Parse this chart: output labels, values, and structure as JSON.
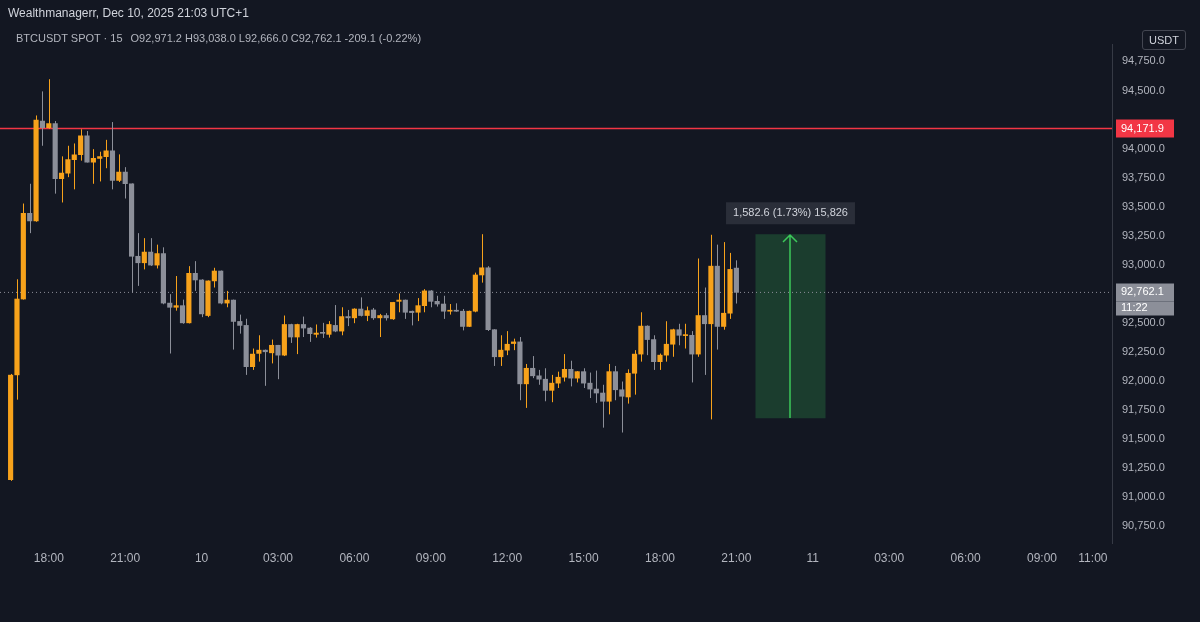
{
  "chart_data": {
    "type": "candlestick",
    "title": "BTCUSDT SPOT · 15",
    "subtitle": "O92,971.2 H93,038.0 L92,666.0 C92,762.1 -209.1 (-0.22%)",
    "ylabel": "USDT",
    "annotations": [
      "Wealthmanagerr, Dec 10, 2025 21:03 UTC+1",
      "11:22"
    ],
    "x": [
      "2025-12-09T16:30",
      "2025-12-09T16:45",
      "2025-12-09T17:00",
      "2025-12-09T17:15",
      "2025-12-09T17:30",
      "2025-12-09T17:45",
      "2025-12-09T18:00",
      "2025-12-09T18:15",
      "2025-12-09T18:30",
      "2025-12-09T18:45",
      "2025-12-09T19:00",
      "2025-12-09T19:15",
      "2025-12-09T19:30",
      "2025-12-09T19:45",
      "2025-12-09T20:00",
      "2025-12-09T20:15",
      "2025-12-09T20:30",
      "2025-12-09T20:45",
      "2025-12-09T21:00",
      "2025-12-09T21:15",
      "2025-12-09T21:30",
      "2025-12-09T21:45",
      "2025-12-09T22:00",
      "2025-12-09T22:15",
      "2025-12-09T22:30",
      "2025-12-09T22:45",
      "2025-12-09T23:00",
      "2025-12-09T23:15",
      "2025-12-09T23:30",
      "2025-12-09T23:45",
      "2025-12-10T00:00",
      "2025-12-10T00:15",
      "2025-12-10T00:30",
      "2025-12-10T00:45",
      "2025-12-10T01:00",
      "2025-12-10T01:15",
      "2025-12-10T01:30",
      "2025-12-10T01:45",
      "2025-12-10T02:00",
      "2025-12-10T02:15",
      "2025-12-10T02:30",
      "2025-12-10T02:45",
      "2025-12-10T03:00",
      "2025-12-10T03:15",
      "2025-12-10T03:30",
      "2025-12-10T03:45",
      "2025-12-10T04:00",
      "2025-12-10T04:15",
      "2025-12-10T04:30",
      "2025-12-10T04:45",
      "2025-12-10T05:00",
      "2025-12-10T05:15",
      "2025-12-10T05:30",
      "2025-12-10T05:45",
      "2025-12-10T06:00",
      "2025-12-10T06:15",
      "2025-12-10T06:30",
      "2025-12-10T06:45",
      "2025-12-10T07:00",
      "2025-12-10T07:15",
      "2025-12-10T07:30",
      "2025-12-10T07:45",
      "2025-12-10T08:00",
      "2025-12-10T08:15",
      "2025-12-10T08:30",
      "2025-12-10T08:45",
      "2025-12-10T09:00",
      "2025-12-10T09:15",
      "2025-12-10T09:30",
      "2025-12-10T09:45",
      "2025-12-10T10:00",
      "2025-12-10T10:15",
      "2025-12-10T10:30",
      "2025-12-10T10:45",
      "2025-12-10T11:00",
      "2025-12-10T11:15",
      "2025-12-10T11:30",
      "2025-12-10T11:45",
      "2025-12-10T12:00",
      "2025-12-10T12:15",
      "2025-12-10T12:30",
      "2025-12-10T12:45",
      "2025-12-10T13:00",
      "2025-12-10T13:15",
      "2025-12-10T13:30",
      "2025-12-10T13:45",
      "2025-12-10T14:00",
      "2025-12-10T14:15",
      "2025-12-10T14:30",
      "2025-12-10T14:45",
      "2025-12-10T15:00",
      "2025-12-10T15:15",
      "2025-12-10T15:30",
      "2025-12-10T15:45",
      "2025-12-10T16:00",
      "2025-12-10T16:15",
      "2025-12-10T16:30",
      "2025-12-10T16:45",
      "2025-12-10T17:00",
      "2025-12-10T17:15",
      "2025-12-10T17:30",
      "2025-12-10T17:45",
      "2025-12-10T18:00",
      "2025-12-10T18:15",
      "2025-12-10T18:30",
      "2025-12-10T18:45",
      "2025-12-10T19:00",
      "2025-12-10T19:15",
      "2025-12-10T19:30",
      "2025-12-10T19:45",
      "2025-12-10T20:00",
      "2025-12-10T20:15",
      "2025-12-10T20:30",
      "2025-12-10T20:45",
      "2025-12-10T21:00"
    ],
    "ohlc": [
      [
        91150,
        92060,
        91140,
        92050
      ],
      [
        92052,
        92875,
        91839,
        92705
      ],
      [
        92705,
        93527,
        92700,
        93442
      ],
      [
        93442,
        93697,
        93272,
        93377
      ],
      [
        93377,
        94285,
        93370,
        94245
      ],
      [
        94237,
        94492,
        94024,
        94180
      ],
      [
        94180,
        94597,
        94170,
        94214
      ],
      [
        94214,
        94237,
        93612,
        93740
      ],
      [
        93740,
        93933,
        93536,
        93788
      ],
      [
        93788,
        94024,
        93754,
        93905
      ],
      [
        93905,
        94044,
        93649,
        93947
      ],
      [
        93947,
        94166,
        93896,
        94109
      ],
      [
        94109,
        94151,
        93880,
        93882
      ],
      [
        93882,
        93995,
        93697,
        93916
      ],
      [
        93916,
        93973,
        93717,
        93930
      ],
      [
        93930,
        94075,
        93831,
        93981
      ],
      [
        93981,
        94228,
        93649,
        93726
      ],
      [
        93726,
        93950,
        93712,
        93797
      ],
      [
        93797,
        93840,
        93570,
        93697
      ],
      [
        93697,
        93700,
        92761,
        93073
      ],
      [
        93073,
        93272,
        92818,
        93017
      ],
      [
        93017,
        93229,
        92960,
        93110
      ],
      [
        93110,
        93229,
        92990,
        92997
      ],
      [
        92997,
        93173,
        92968,
        93096
      ],
      [
        93096,
        93150,
        92660,
        92670
      ],
      [
        92670,
        92747,
        92236,
        92634
      ],
      [
        92634,
        92903,
        92605,
        92648
      ],
      [
        92648,
        92700,
        92492,
        92500
      ],
      [
        92500,
        92988,
        92495,
        92926
      ],
      [
        92926,
        93031,
        92775,
        92869
      ],
      [
        92869,
        92875,
        92549,
        92577
      ],
      [
        92563,
        92865,
        92549,
        92861
      ],
      [
        92861,
        92974,
        92804,
        92946
      ],
      [
        92946,
        92950,
        92660,
        92670
      ],
      [
        92670,
        92775,
        92634,
        92696
      ],
      [
        92696,
        92700,
        92270,
        92512
      ],
      [
        92512,
        92571,
        92407,
        92478
      ],
      [
        92478,
        92535,
        92052,
        92123
      ],
      [
        92123,
        92279,
        92095,
        92231
      ],
      [
        92237,
        92393,
        92166,
        92265
      ],
      [
        92265,
        92270,
        91958,
        92251
      ],
      [
        92242,
        92356,
        92151,
        92307
      ],
      [
        92307,
        92310,
        92015,
        92222
      ],
      [
        92222,
        92563,
        92214,
        92486
      ],
      [
        92486,
        92492,
        92327,
        92378
      ],
      [
        92378,
        92492,
        92231,
        92486
      ],
      [
        92486,
        92554,
        92378,
        92455
      ],
      [
        92455,
        92463,
        92336,
        92407
      ],
      [
        92401,
        92486,
        92373,
        92412
      ],
      [
        92412,
        92500,
        92370,
        92410
      ],
      [
        92401,
        92515,
        92373,
        92486
      ],
      [
        92478,
        92653,
        92420,
        92429
      ],
      [
        92429,
        92634,
        92393,
        92554
      ],
      [
        92554,
        92611,
        92472,
        92543
      ],
      [
        92543,
        92625,
        92497,
        92619
      ],
      [
        92619,
        92719,
        92555,
        92563
      ],
      [
        92563,
        92640,
        92515,
        92605
      ],
      [
        92611,
        92628,
        92526,
        92543
      ],
      [
        92543,
        92577,
        92378,
        92563
      ],
      [
        92563,
        92583,
        92520,
        92543
      ],
      [
        92534,
        92680,
        92526,
        92676
      ],
      [
        92685,
        92753,
        92591,
        92696
      ],
      [
        92696,
        92700,
        92534,
        92591
      ],
      [
        92600,
        92605,
        92478,
        92588
      ],
      [
        92591,
        92713,
        92515,
        92648
      ],
      [
        92648,
        92790,
        92591,
        92775
      ],
      [
        92775,
        92781,
        92634,
        92685
      ],
      [
        92685,
        92733,
        92640,
        92662
      ],
      [
        92662,
        92733,
        92534,
        92600
      ],
      [
        92600,
        92662,
        92571,
        92605
      ],
      [
        92605,
        92668,
        92595,
        92600
      ],
      [
        92600,
        92619,
        92435,
        92469
      ],
      [
        92469,
        92605,
        92464,
        92600
      ],
      [
        92600,
        92932,
        92591,
        92912
      ],
      [
        92912,
        93263,
        92846,
        92974
      ],
      [
        92974,
        92988,
        92430,
        92441
      ],
      [
        92441,
        92445,
        92129,
        92208
      ],
      [
        92208,
        92393,
        92129,
        92265
      ],
      [
        92265,
        92429,
        92222,
        92316
      ],
      [
        92322,
        92364,
        92265,
        92336
      ],
      [
        92336,
        92378,
        91834,
        91975
      ],
      [
        91975,
        92146,
        91768,
        92109
      ],
      [
        92109,
        92214,
        92024,
        92044
      ],
      [
        92044,
        92095,
        91967,
        92015
      ],
      [
        92015,
        92109,
        91825,
        91919
      ],
      [
        91919,
        92052,
        91817,
        91981
      ],
      [
        91981,
        92080,
        91939,
        92032
      ],
      [
        92032,
        92231,
        91995,
        92100
      ],
      [
        92100,
        92174,
        91953,
        92024
      ],
      [
        92024,
        92085,
        91987,
        92080
      ],
      [
        92080,
        92109,
        91939,
        91981
      ],
      [
        91981,
        92072,
        91853,
        91930
      ],
      [
        91930,
        92089,
        91811,
        91896
      ],
      [
        91896,
        91967,
        91598,
        91825
      ],
      [
        91825,
        92146,
        91712,
        92080
      ],
      [
        92080,
        92129,
        91834,
        91924
      ],
      [
        91924,
        91995,
        91556,
        91868
      ],
      [
        91862,
        92100,
        91805,
        92066
      ],
      [
        92066,
        92265,
        91882,
        92231
      ],
      [
        92231,
        92591,
        92166,
        92472
      ],
      [
        92472,
        92478,
        92222,
        92356
      ],
      [
        92356,
        92393,
        92095,
        92166
      ],
      [
        92166,
        92236,
        92095,
        92222
      ],
      [
        92222,
        92514,
        92166,
        92316
      ],
      [
        92316,
        92449,
        92208,
        92441
      ],
      [
        92441,
        92492,
        92307,
        92393
      ],
      [
        92390,
        92492,
        92279,
        92398
      ],
      [
        92393,
        92429,
        91987,
        92231
      ],
      [
        92231,
        93054,
        92208,
        92563
      ],
      [
        92563,
        92804,
        92052,
        92492
      ],
      [
        92492,
        93258,
        91669,
        92988
      ],
      [
        92988,
        93173,
        92270,
        92469
      ],
      [
        92469,
        93195,
        92441,
        92583
      ],
      [
        92583,
        93102,
        92534,
        92960
      ],
      [
        92971.2,
        93038.0,
        92666.0,
        92762.1
      ]
    ],
    "colors": [
      "#f7a21b",
      "#f7a21b",
      "#f7a21b",
      "#8c8f99",
      "#f7a21b",
      "#8c8f99",
      "#f7a21b",
      "#8c8f99",
      "#f7a21b",
      "#f7a21b",
      "#f7a21b",
      "#f7a21b",
      "#8c8f99",
      "#f7a21b",
      "#f7a21b",
      "#f7a21b",
      "#8c8f99",
      "#f7a21b",
      "#8c8f99",
      "#8c8f99",
      "#8c8f99",
      "#f7a21b",
      "#8c8f99",
      "#f7a21b",
      "#8c8f99",
      "#8c8f99",
      "#f7a21b",
      "#8c8f99",
      "#f7a21b",
      "#8c8f99",
      "#8c8f99",
      "#f7a21b",
      "#f7a21b",
      "#8c8f99",
      "#f7a21b",
      "#8c8f99",
      "#8c8f99",
      "#8c8f99",
      "#f7a21b",
      "#f7a21b",
      "#8c8f99",
      "#f7a21b",
      "#8c8f99",
      "#f7a21b",
      "#8c8f99",
      "#f7a21b",
      "#8c8f99",
      "#8c8f99",
      "#f7a21b",
      "#8c8f99",
      "#f7a21b",
      "#8c8f99",
      "#f7a21b",
      "#8c8f99",
      "#f7a21b",
      "#8c8f99",
      "#f7a21b",
      "#8c8f99",
      "#f7a21b",
      "#8c8f99",
      "#f7a21b",
      "#f7a21b",
      "#8c8f99",
      "#8c8f99",
      "#f7a21b",
      "#f7a21b",
      "#8c8f99",
      "#8c8f99",
      "#8c8f99",
      "#f7a21b",
      "#8c8f99",
      "#8c8f99",
      "#f7a21b",
      "#f7a21b",
      "#f7a21b",
      "#8c8f99",
      "#8c8f99",
      "#f7a21b",
      "#f7a21b",
      "#f7a21b",
      "#8c8f99",
      "#f7a21b",
      "#8c8f99",
      "#8c8f99",
      "#8c8f99",
      "#f7a21b",
      "#f7a21b",
      "#f7a21b",
      "#8c8f99",
      "#f7a21b",
      "#8c8f99",
      "#8c8f99",
      "#8c8f99",
      "#8c8f99",
      "#f7a21b",
      "#8c8f99",
      "#8c8f99",
      "#f7a21b",
      "#f7a21b",
      "#f7a21b",
      "#8c8f99",
      "#8c8f99",
      "#f7a21b",
      "#f7a21b",
      "#f7a21b",
      "#8c8f99",
      "#f7a21b",
      "#8c8f99",
      "#f7a21b",
      "#8c8f99",
      "#f7a21b",
      "#8c8f99",
      "#f7a21b",
      "#f7a21b",
      "#8c8f99"
    ],
    "xlim": [
      "2025-12-09T16:05",
      "2025-12-11T11:45"
    ],
    "xticks": [
      {
        "value": "2025-12-09T18:00",
        "label": "18:00"
      },
      {
        "value": "2025-12-09T21:00",
        "label": "21:00"
      },
      {
        "value": "2025-12-10T00:00",
        "label": "10"
      },
      {
        "value": "2025-12-10T03:00",
        "label": "03:00"
      },
      {
        "value": "2025-12-10T06:00",
        "label": "06:00"
      },
      {
        "value": "2025-12-10T09:00",
        "label": "09:00"
      },
      {
        "value": "2025-12-10T12:00",
        "label": "12:00"
      },
      {
        "value": "2025-12-10T15:00",
        "label": "15:00"
      },
      {
        "value": "2025-12-10T18:00",
        "label": "18:00"
      },
      {
        "value": "2025-12-10T21:00",
        "label": "21:00"
      },
      {
        "value": "2025-12-11T00:00",
        "label": "11"
      },
      {
        "value": "2025-12-11T03:00",
        "label": "03:00"
      },
      {
        "value": "2025-12-11T06:00",
        "label": "06:00"
      },
      {
        "value": "2025-12-11T09:00",
        "label": "09:00"
      },
      {
        "value": "2025-12-11T11:00",
        "label": "11:00"
      }
    ],
    "ylim": [
      90600,
      94900
    ],
    "yticks": [
      {
        "value": 90750,
        "label": "90,750.0"
      },
      {
        "value": 91000,
        "label": "91,000.0"
      },
      {
        "value": 91250,
        "label": "91,250.0"
      },
      {
        "value": 91500,
        "label": "91,500.0"
      },
      {
        "value": 91750,
        "label": "91,750.0"
      },
      {
        "value": 92000,
        "label": "92,000.0"
      },
      {
        "value": 92250,
        "label": "92,250.0"
      },
      {
        "value": 92500,
        "label": "92,500.0"
      },
      {
        "value": 93000,
        "label": "93,000.0"
      },
      {
        "value": 93250,
        "label": "93,250.0"
      },
      {
        "value": 93500,
        "label": "93,500.0"
      },
      {
        "value": 93750,
        "label": "93,750.0"
      },
      {
        "value": 94000,
        "label": "94,000.0"
      },
      {
        "value": 94500,
        "label": "94,500.0"
      },
      {
        "value": 94750,
        "label": "94,750.0"
      }
    ],
    "ref_lines": [
      {
        "axis": "y",
        "value": 94171.9,
        "label": "94,171.9",
        "color": "#f23645"
      },
      {
        "axis": "y",
        "value": 92762.1,
        "label": "92,762.1",
        "color": "#8c8f99",
        "line_style": "dotted"
      }
    ],
    "bands": [
      {
        "axis": "y",
        "from": 91679,
        "to": 93261.6,
        "label": "1,582.6 (1.73%) 15,826",
        "color": "#3cc85a"
      }
    ]
  }
}
